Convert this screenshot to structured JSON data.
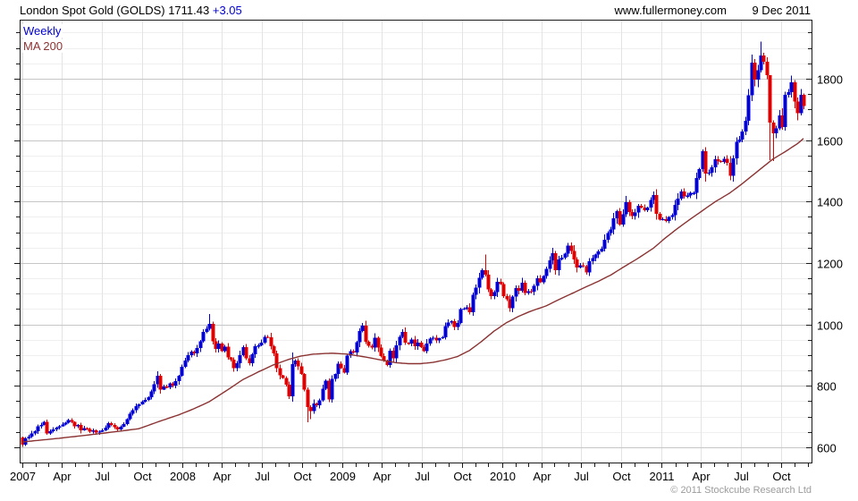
{
  "header": {
    "title": "London Spot Gold (GOLDS) 1711.43",
    "change": "+3.05",
    "website": "www.fullermoney.com",
    "date": "9 Dec 2011"
  },
  "legend": {
    "weekly": "Weekly",
    "ma200": "MA 200"
  },
  "footer": {
    "copyright": "© 2011 Stockcube Research Ltd"
  },
  "colors": {
    "up_candle": "#0000D6",
    "down_candle": "#E00000",
    "ma_line": "#8B3232",
    "grid_minor": "#EFEFEF",
    "grid_major": "#C6C6C6",
    "grid_vertical": "#E3E3E3",
    "axis_border": "#1A1A1A",
    "text": "#000000",
    "change_text": "#0000CC",
    "legend_weekly_text": "#0000CC",
    "copyright_text": "#9C9C9C"
  },
  "chart_data": {
    "type": "candlestick+line",
    "title": "London Spot Gold (GOLDS)",
    "frequency": "weekly",
    "last_price": 1711.43,
    "change": 3.05,
    "start_date": "2007-01-01",
    "end_date": "2011-12-09",
    "grid": true,
    "y_axis_side": "right",
    "ylim": [
      550,
      1992
    ],
    "y_ticks": [
      600,
      800,
      1000,
      1200,
      1400,
      1600,
      1800
    ],
    "y_minor_step": 50,
    "x_tick_labels": [
      "2007",
      "Apr",
      "Jul",
      "Oct",
      "2008",
      "Apr",
      "Jul",
      "Oct",
      "2009",
      "Apr",
      "Jul",
      "Oct",
      "2010",
      "Apr",
      "Jul",
      "Oct",
      "2011",
      "Apr",
      "Jul",
      "Oct"
    ],
    "series_names": [
      "Weekly candles",
      "MA 200"
    ],
    "first_open": 632,
    "weekly_closes": [
      608,
      628,
      635,
      645,
      652,
      668,
      673,
      683,
      645,
      652,
      658,
      664,
      668,
      674,
      680,
      688,
      682,
      668,
      672,
      655,
      662,
      659,
      650,
      655,
      647,
      651,
      655,
      663,
      678,
      672,
      665,
      658,
      667,
      675,
      692,
      709,
      720,
      733,
      740,
      748,
      754,
      763,
      782,
      805,
      832,
      788,
      797,
      795,
      808,
      800,
      815,
      833,
      862,
      882,
      899,
      911,
      905,
      923,
      945,
      975,
      986,
      1002,
      945,
      920,
      937,
      913,
      927,
      892,
      885,
      857,
      873,
      900,
      926,
      890,
      873,
      903,
      928,
      931,
      941,
      960,
      958,
      928,
      906,
      858,
      834,
      825,
      803,
      765,
      870,
      882,
      863,
      838,
      787,
      730,
      718,
      742,
      737,
      752,
      791,
      816,
      755,
      822,
      838,
      872,
      857,
      843,
      898,
      912,
      909,
      942,
      978,
      995,
      943,
      930,
      924,
      956,
      925,
      896,
      882,
      868,
      914,
      889,
      931,
      959,
      976,
      940,
      937,
      951,
      928,
      941,
      926,
      913,
      938,
      954,
      957,
      948,
      955,
      958,
      994,
      1006,
      1010,
      992,
      1004,
      1049,
      1051,
      1056,
      1040,
      1096,
      1119,
      1151,
      1176,
      1162,
      1114,
      1092,
      1105,
      1139,
      1131,
      1092,
      1081,
      1052,
      1090,
      1118,
      1109,
      1135,
      1102,
      1108,
      1106,
      1126,
      1150,
      1137,
      1157,
      1180,
      1208,
      1232,
      1177,
      1212,
      1217,
      1230,
      1256,
      1239,
      1211,
      1185,
      1193,
      1189,
      1169,
      1205,
      1216,
      1228,
      1238,
      1246,
      1275,
      1297,
      1309,
      1345,
      1368,
      1325,
      1359,
      1397,
      1365,
      1353,
      1364,
      1386,
      1380,
      1372,
      1380,
      1405,
      1421,
      1360,
      1341,
      1343,
      1337,
      1349,
      1356,
      1389,
      1409,
      1432,
      1416,
      1419,
      1428,
      1428,
      1476,
      1505,
      1564,
      1491,
      1494,
      1512,
      1537,
      1532,
      1529,
      1539,
      1526,
      1483,
      1541,
      1594,
      1601,
      1628,
      1663,
      1746,
      1852,
      1797,
      1827,
      1876,
      1855,
      1812,
      1657,
      1622,
      1638,
      1680,
      1642,
      1747,
      1756,
      1788,
      1725,
      1688,
      1747,
      1711
    ],
    "wick_overrides": {
      "0": {
        "low": 601
      },
      "61": {
        "high": 1033
      },
      "88": {
        "high": 908,
        "low": 748
      },
      "93": {
        "low": 681
      },
      "94": {
        "low": 692
      },
      "151": {
        "high": 1227
      },
      "222": {
        "high": 1570
      },
      "223": {
        "high": 1577,
        "low": 1465
      },
      "238": {
        "high": 1878
      },
      "241": {
        "high": 1921
      },
      "244": {
        "high": 1812,
        "low": 1535
      },
      "245": {
        "high": 1665,
        "low": 1532
      }
    },
    "ma_anchors": [
      [
        0,
        617
      ],
      [
        13,
        630
      ],
      [
        26,
        645
      ],
      [
        38,
        660
      ],
      [
        45,
        685
      ],
      [
        51,
        705
      ],
      [
        56,
        725
      ],
      [
        61,
        748
      ],
      [
        66,
        780
      ],
      [
        72,
        820
      ],
      [
        77,
        845
      ],
      [
        82,
        868
      ],
      [
        87,
        886
      ],
      [
        91,
        897
      ],
      [
        95,
        903
      ],
      [
        101,
        906
      ],
      [
        106,
        903
      ],
      [
        110,
        897
      ],
      [
        114,
        890
      ],
      [
        118,
        882
      ],
      [
        122,
        875
      ],
      [
        126,
        872
      ],
      [
        130,
        872
      ],
      [
        134,
        876
      ],
      [
        138,
        884
      ],
      [
        142,
        895
      ],
      [
        146,
        915
      ],
      [
        150,
        945
      ],
      [
        154,
        978
      ],
      [
        158,
        1005
      ],
      [
        162,
        1026
      ],
      [
        166,
        1043
      ],
      [
        171,
        1060
      ],
      [
        175,
        1080
      ],
      [
        180,
        1103
      ],
      [
        184,
        1122
      ],
      [
        188,
        1140
      ],
      [
        192,
        1160
      ],
      [
        196,
        1185
      ],
      [
        201,
        1215
      ],
      [
        206,
        1248
      ],
      [
        210,
        1282
      ],
      [
        214,
        1313
      ],
      [
        218,
        1342
      ],
      [
        222,
        1370
      ],
      [
        226,
        1398
      ],
      [
        231,
        1428
      ],
      [
        235,
        1458
      ],
      [
        240,
        1498
      ],
      [
        245,
        1538
      ],
      [
        249,
        1562
      ],
      [
        253,
        1588
      ],
      [
        255,
        1605
      ]
    ]
  }
}
